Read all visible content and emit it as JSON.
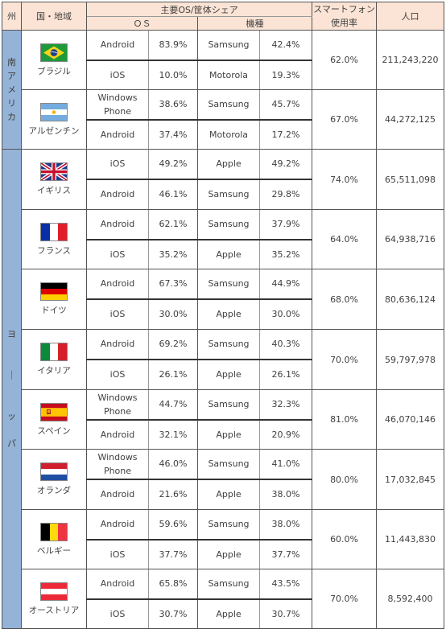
{
  "header": {
    "region": "州",
    "country": "国・地域",
    "share_group": "主要OS/筐体シェア",
    "os": "ＯＳ",
    "model": "機種",
    "smartphone": "スマートフォン",
    "usage_rate": "使用率",
    "population": "人口"
  },
  "regions": [
    {
      "label": "南\nア\nメ\nリ\nカ"
    },
    {
      "label": "ヨ\n\n\n｜\n\n\nッ\n\nパ"
    }
  ],
  "countries": [
    {
      "name": "ブラジル",
      "flag": "brazil-flag",
      "rows": [
        {
          "os": "Android",
          "os_pct": "83.9%",
          "brand": "Samsung",
          "brand_pct": "42.4%"
        },
        {
          "os": "iOS",
          "os_pct": "10.0%",
          "brand": "Motorola",
          "brand_pct": "19.3%"
        }
      ],
      "usage": "62.0%",
      "population": "211,243,220"
    },
    {
      "name": "アルゼンチン",
      "flag": "argentina-flag",
      "rows": [
        {
          "os": "Windows\nPhone",
          "os_pct": "38.6%",
          "brand": "Samsung",
          "brand_pct": "45.7%"
        },
        {
          "os": "Android",
          "os_pct": "37.4%",
          "brand": "Motorola",
          "brand_pct": "17.2%"
        }
      ],
      "usage": "67.0%",
      "population": "44,272,125"
    },
    {
      "name": "イギリス",
      "flag": "uk-flag",
      "rows": [
        {
          "os": "iOS",
          "os_pct": "49.2%",
          "brand": "Apple",
          "brand_pct": "49.2%"
        },
        {
          "os": "Android",
          "os_pct": "46.1%",
          "brand": "Samsung",
          "brand_pct": "29.8%"
        }
      ],
      "usage": "74.0%",
      "population": "65,511,098"
    },
    {
      "name": "フランス",
      "flag": "france-flag",
      "rows": [
        {
          "os": "Android",
          "os_pct": "62.1%",
          "brand": "Samsung",
          "brand_pct": "37.9%"
        },
        {
          "os": "iOS",
          "os_pct": "35.2%",
          "brand": "Apple",
          "brand_pct": "35.2%"
        }
      ],
      "usage": "64.0%",
      "population": "64,938,716"
    },
    {
      "name": "ドイツ",
      "flag": "germany-flag",
      "rows": [
        {
          "os": "Android",
          "os_pct": "67.3%",
          "brand": "Samsung",
          "brand_pct": "44.9%"
        },
        {
          "os": "iOS",
          "os_pct": "30.0%",
          "brand": "Apple",
          "brand_pct": "30.0%"
        }
      ],
      "usage": "68.0%",
      "population": "80,636,124"
    },
    {
      "name": "イタリア",
      "flag": "italy-flag",
      "rows": [
        {
          "os": "Android",
          "os_pct": "69.2%",
          "brand": "Samsung",
          "brand_pct": "40.3%"
        },
        {
          "os": "iOS",
          "os_pct": "26.1%",
          "brand": "Apple",
          "brand_pct": "26.1%"
        }
      ],
      "usage": "70.0%",
      "population": "59,797,978"
    },
    {
      "name": "スペイン",
      "flag": "spain-flag",
      "rows": [
        {
          "os": "Windows\nPhone",
          "os_pct": "44.7%",
          "brand": "Samsung",
          "brand_pct": "32.3%"
        },
        {
          "os": "Android",
          "os_pct": "32.1%",
          "brand": "Apple",
          "brand_pct": "20.9%"
        }
      ],
      "usage": "81.0%",
      "population": "46,070,146"
    },
    {
      "name": "オランダ",
      "flag": "netherlands-flag",
      "rows": [
        {
          "os": "Windows\nPhone",
          "os_pct": "46.0%",
          "brand": "Samsung",
          "brand_pct": "41.0%"
        },
        {
          "os": "Android",
          "os_pct": "21.6%",
          "brand": "Apple",
          "brand_pct": "38.0%"
        }
      ],
      "usage": "80.0%",
      "population": "17,032,845"
    },
    {
      "name": "ベルギー",
      "flag": "belgium-flag",
      "rows": [
        {
          "os": "Android",
          "os_pct": "59.6%",
          "brand": "Samsung",
          "brand_pct": "38.0%"
        },
        {
          "os": "iOS",
          "os_pct": "37.7%",
          "brand": "Apple",
          "brand_pct": "37.7%"
        }
      ],
      "usage": "60.0%",
      "population": "11,443,830"
    },
    {
      "name": "オーストリア",
      "flag": "austria-flag",
      "rows": [
        {
          "os": "Android",
          "os_pct": "65.8%",
          "brand": "Samsung",
          "brand_pct": "43.5%"
        },
        {
          "os": "iOS",
          "os_pct": "30.7%",
          "brand": "Apple",
          "brand_pct": "30.7%"
        }
      ],
      "usage": "70.0%",
      "population": "8,592,400"
    }
  ]
}
